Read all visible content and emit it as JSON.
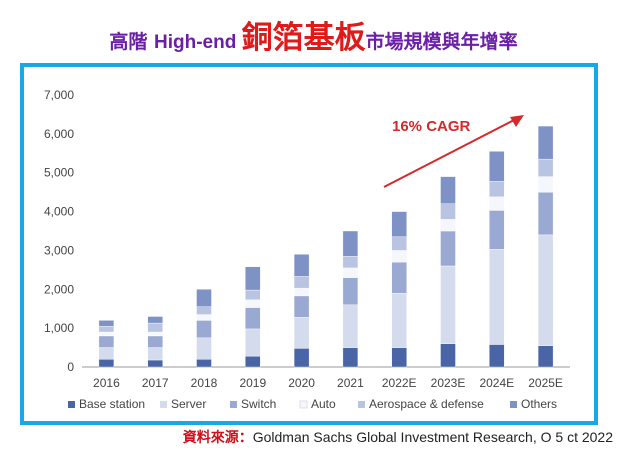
{
  "title": {
    "part1": "高階 ",
    "part2": "High-end ",
    "part3": "銅箔基板",
    "part4": "市場規模與年增率"
  },
  "source": {
    "label": "資料來源：",
    "text": "Goldman Sachs Global Investment Research, O 5 ct 2022"
  },
  "colors": {
    "frame": "#18a8e6",
    "title": "#6a1fa6",
    "title_accent": "#e01a1a",
    "arrow": "#d42a2a"
  },
  "chart_data": {
    "type": "bar",
    "stacked": true,
    "categories": [
      "2016",
      "2017",
      "2018",
      "2019",
      "2020",
      "2021",
      "2022E",
      "2023E",
      "2024E",
      "2025E"
    ],
    "ylim": [
      0,
      7000
    ],
    "yticks": [
      "0",
      "1,000",
      "2,000",
      "3,000",
      "4,000",
      "5,000",
      "6,000",
      "7,000"
    ],
    "ytick_values": [
      0,
      1000,
      2000,
      3000,
      4000,
      5000,
      6000,
      7000
    ],
    "legend_position": "bottom",
    "series": [
      {
        "name": "Base station",
        "color": "#4a65a5",
        "values": [
          200,
          180,
          200,
          280,
          480,
          500,
          500,
          600,
          580,
          550
        ]
      },
      {
        "name": "Server",
        "color": "#d3dbec",
        "values": [
          300,
          320,
          550,
          700,
          800,
          1100,
          1400,
          2000,
          2450,
          2850
        ]
      },
      {
        "name": "Switch",
        "color": "#9aa9d2",
        "values": [
          300,
          300,
          450,
          550,
          550,
          700,
          800,
          900,
          1000,
          1100
        ]
      },
      {
        "name": "Auto",
        "color": "#f5f7fc",
        "values": [
          100,
          100,
          150,
          200,
          200,
          250,
          300,
          300,
          350,
          400
        ]
      },
      {
        "name": "Aerospace & defense",
        "color": "#b9c3e2",
        "values": [
          150,
          230,
          200,
          250,
          300,
          300,
          350,
          400,
          400,
          450
        ]
      },
      {
        "name": "Others",
        "color": "#7f92c6",
        "values": [
          150,
          170,
          450,
          600,
          570,
          650,
          650,
          700,
          770,
          850
        ]
      }
    ],
    "annotation": {
      "text": "16% CAGR",
      "color": "#d42a2a"
    }
  }
}
